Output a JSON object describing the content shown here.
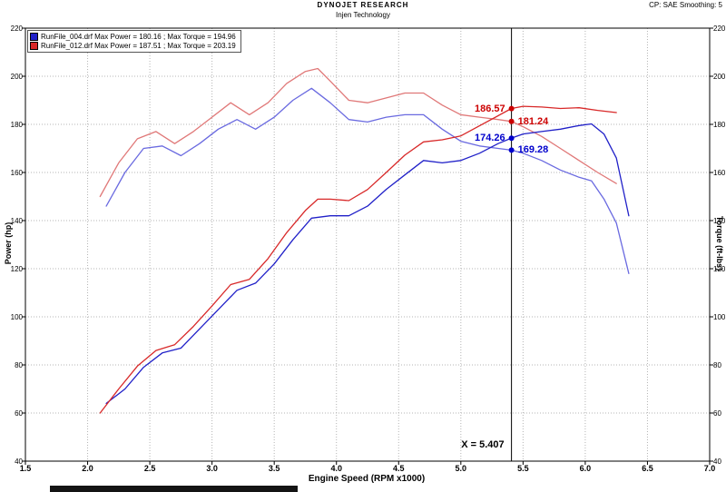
{
  "header": {
    "title": "DYNOJET RESEARCH",
    "subtitle": "Injen Technology",
    "top_right": "CP: SAE  Smoothing: 5"
  },
  "legend": {
    "entries": [
      {
        "label": "RunFile_004.drf Max Power = 180.16 ;  Max Torque = 194.96",
        "color": "#2020c8"
      },
      {
        "label": "RunFile_012.drf Max Power = 187.51 ;  Max Torque = 203.19",
        "color": "#d82828"
      }
    ]
  },
  "axes": {
    "x_label": "Engine Speed (RPM x1000)",
    "y_left_label": "Power (hp)",
    "y_right_label": "Torque (ft-lbs)",
    "x_ticks": [
      1.5,
      2.0,
      2.5,
      3.0,
      3.5,
      4.0,
      4.5,
      5.0,
      5.5,
      6.0,
      6.5,
      7.0
    ],
    "y_ticks": [
      220,
      200,
      180,
      160,
      140,
      120,
      100,
      80,
      60,
      40
    ]
  },
  "cursor": {
    "x": 5.407,
    "label": "X = 5.407",
    "readouts": [
      {
        "value": "186.57",
        "y": 186.57,
        "color": "#cc0000",
        "side": "left"
      },
      {
        "value": "181.24",
        "y": 181.24,
        "color": "#cc0000",
        "side": "right"
      },
      {
        "value": "174.26",
        "y": 174.26,
        "color": "#0000cc",
        "side": "left"
      },
      {
        "value": "169.28",
        "y": 169.28,
        "color": "#0000cc",
        "side": "right"
      }
    ]
  },
  "chart_data": {
    "type": "line",
    "title": "DYNOJET RESEARCH - Injen Technology",
    "xlabel": "Engine Speed (RPM x1000)",
    "ylabel_left": "Power (hp)",
    "ylabel_right": "Torque (ft-lbs)",
    "xlim": [
      1.5,
      7.0
    ],
    "ylim": [
      40,
      220
    ],
    "grid": true,
    "legend_position": "top-left",
    "cursor_x": 5.407,
    "series": [
      {
        "name": "RunFile_004.drf Torque",
        "axis": "right",
        "color": "#6a6ae0",
        "max": 194.96,
        "x": [
          2.15,
          2.3,
          2.45,
          2.6,
          2.75,
          2.9,
          3.05,
          3.2,
          3.35,
          3.5,
          3.65,
          3.8,
          3.95,
          4.1,
          4.25,
          4.4,
          4.55,
          4.7,
          4.85,
          5.0,
          5.15,
          5.3,
          5.407,
          5.5,
          5.65,
          5.8,
          5.95,
          6.05,
          6.15,
          6.25,
          6.35
        ],
        "y": [
          146,
          160,
          170,
          171,
          167,
          172,
          178,
          182,
          178,
          183,
          190,
          195,
          189,
          182,
          181,
          183,
          184,
          184,
          178,
          173,
          171,
          170,
          169.3,
          168,
          165,
          161,
          158,
          156.5,
          149,
          139,
          118
        ]
      },
      {
        "name": "RunFile_012.drf Torque",
        "axis": "right",
        "color": "#e07878",
        "max": 203.19,
        "x": [
          2.1,
          2.25,
          2.4,
          2.55,
          2.7,
          2.85,
          3.0,
          3.15,
          3.3,
          3.45,
          3.6,
          3.75,
          3.85,
          3.95,
          4.1,
          4.25,
          4.4,
          4.55,
          4.7,
          4.85,
          5.0,
          5.15,
          5.3,
          5.407,
          5.5,
          5.65,
          5.8,
          5.95,
          6.1,
          6.25
        ],
        "y": [
          150,
          164,
          174,
          177,
          172,
          177,
          183,
          189,
          184,
          189,
          197,
          202,
          203.2,
          198,
          190,
          189,
          191,
          193,
          193,
          188,
          184,
          183,
          182,
          181.2,
          179,
          175,
          170,
          165,
          160,
          155.4
        ]
      },
      {
        "name": "RunFile_004.drf Power",
        "axis": "left",
        "color": "#2020c8",
        "max": 180.16,
        "x": [
          2.15,
          2.3,
          2.45,
          2.6,
          2.75,
          2.9,
          3.05,
          3.2,
          3.35,
          3.5,
          3.65,
          3.8,
          3.95,
          4.1,
          4.25,
          4.4,
          4.55,
          4.7,
          4.85,
          5.0,
          5.15,
          5.3,
          5.407,
          5.5,
          5.65,
          5.8,
          5.95,
          6.05,
          6.15,
          6.25,
          6.35
        ],
        "y": [
          64,
          70,
          79,
          85,
          87,
          95,
          103,
          111,
          114,
          122,
          132,
          141,
          142,
          142,
          146,
          153,
          159,
          165,
          164,
          165,
          168,
          172,
          174.3,
          176,
          177,
          178,
          179.5,
          180.2,
          176,
          166,
          142
        ]
      },
      {
        "name": "RunFile_012.drf Power",
        "axis": "left",
        "color": "#d82828",
        "max": 187.51,
        "x": [
          2.1,
          2.25,
          2.4,
          2.55,
          2.7,
          2.85,
          3.0,
          3.15,
          3.3,
          3.45,
          3.6,
          3.75,
          3.85,
          3.95,
          4.1,
          4.25,
          4.4,
          4.55,
          4.7,
          4.85,
          5.0,
          5.15,
          5.3,
          5.407,
          5.5,
          5.65,
          5.8,
          5.95,
          6.1,
          6.25
        ],
        "y": [
          60,
          70,
          79.5,
          86,
          88.4,
          96,
          104.5,
          113.4,
          115.6,
          124.2,
          135,
          144.2,
          148.9,
          148.9,
          148.3,
          152.9,
          160,
          167.2,
          172.7,
          173.6,
          175.2,
          179.4,
          183.6,
          186.6,
          187.5,
          187.2,
          186.6,
          186.9,
          185.8,
          184.9
        ]
      }
    ]
  }
}
